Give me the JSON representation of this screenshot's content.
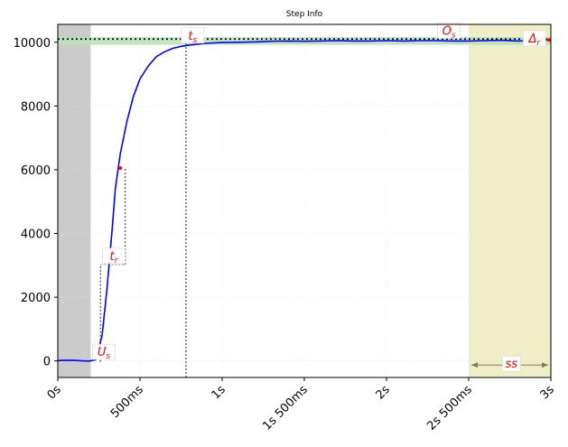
{
  "chart_data": {
    "type": "line",
    "title": "Step Info",
    "xlabel": "",
    "ylabel": "",
    "xlim": [
      0,
      3
    ],
    "ylim": [
      -520,
      10560
    ],
    "grid": true,
    "x_ticks": [
      {
        "value": 0,
        "label": "0s"
      },
      {
        "value": 0.5,
        "label": "500ms"
      },
      {
        "value": 1,
        "label": "1s"
      },
      {
        "value": 1.5,
        "label": "1s 500ms"
      },
      {
        "value": 2,
        "label": "2s"
      },
      {
        "value": 2.5,
        "label": "2s 500ms"
      },
      {
        "value": 3,
        "label": "3s"
      }
    ],
    "y_ticks": [
      {
        "value": 0,
        "label": "0"
      },
      {
        "value": 2000,
        "label": "2000"
      },
      {
        "value": 4000,
        "label": "4000"
      },
      {
        "value": 6000,
        "label": "6000"
      },
      {
        "value": 8000,
        "label": "8000"
      },
      {
        "value": 10000,
        "label": "10000"
      }
    ],
    "series": [
      {
        "color": "#0000ff",
        "points": [
          [
            0.0,
            10
          ],
          [
            0.05,
            20
          ],
          [
            0.1,
            15
          ],
          [
            0.15,
            0
          ],
          [
            0.19,
            -5
          ],
          [
            0.23,
            30
          ],
          [
            0.27,
            800
          ],
          [
            0.3,
            2300
          ],
          [
            0.33,
            4100
          ],
          [
            0.35,
            5400
          ],
          [
            0.38,
            6500
          ],
          [
            0.42,
            7500
          ],
          [
            0.46,
            8300
          ],
          [
            0.5,
            8850
          ],
          [
            0.55,
            9250
          ],
          [
            0.6,
            9550
          ],
          [
            0.65,
            9700
          ],
          [
            0.7,
            9810
          ],
          [
            0.75,
            9870
          ],
          [
            0.8,
            9910
          ],
          [
            0.85,
            9940
          ],
          [
            0.9,
            9965
          ],
          [
            0.95,
            9980
          ],
          [
            1.0,
            9990
          ],
          [
            1.1,
            10000
          ],
          [
            1.2,
            10010
          ],
          [
            1.3,
            10030
          ],
          [
            1.4,
            10040
          ],
          [
            1.5,
            10030
          ],
          [
            1.6,
            10040
          ],
          [
            1.7,
            10050
          ],
          [
            1.8,
            10040
          ],
          [
            1.9,
            10040
          ],
          [
            2.0,
            10050
          ],
          [
            2.1,
            10040
          ],
          [
            2.2,
            10050
          ],
          [
            2.3,
            10050
          ],
          [
            2.4,
            10040
          ],
          [
            2.5,
            10040
          ],
          [
            2.6,
            10050
          ],
          [
            2.7,
            10060
          ],
          [
            2.8,
            10040
          ],
          [
            2.9,
            10060
          ],
          [
            3.0,
            10070
          ]
        ]
      }
    ],
    "reference_line": {
      "y": 10100,
      "style": "dotted",
      "color": "#000000"
    },
    "bands": [
      {
        "name": "undershoot-region",
        "x0": 0,
        "x1": 0.2,
        "color": "#c8c8c8"
      },
      {
        "name": "steady-state-region",
        "x0": 2.5,
        "x1": 3.0,
        "color": "#eeeec4"
      },
      {
        "name": "settling-band",
        "y0": 9920,
        "y1": 10160,
        "color": "#b7e3b7"
      }
    ],
    "markers": [
      {
        "x": 0.38,
        "y": 6050,
        "color": "#ff0000"
      },
      {
        "x": 2.85,
        "y": 10050,
        "color": "#ff0000"
      },
      {
        "x": 2.99,
        "y": 10070,
        "color": "#ff0000"
      }
    ],
    "guides": [
      {
        "type": "vline",
        "x": 0.78,
        "y0": -520,
        "y1": 9960,
        "style": "dotted"
      },
      {
        "type": "vline",
        "x": 0.26,
        "y0": -30,
        "y1": 3020,
        "style": "dotted"
      },
      {
        "type": "vline",
        "x": 0.41,
        "y0": 3020,
        "y1": 6050,
        "style": "dotted"
      }
    ],
    "annotations": [
      {
        "text": "U",
        "sub": "s",
        "x": 0.28,
        "y": 240
      },
      {
        "text": "t",
        "sub": "r",
        "x": 0.34,
        "y": 3250
      },
      {
        "text": "t",
        "sub": "s",
        "x": 0.82,
        "y": 10170
      },
      {
        "text": "O",
        "sub": "s",
        "x": 2.38,
        "y": 10320
      },
      {
        "text": "Δ",
        "sub": "r",
        "x": 2.9,
        "y": 10080
      },
      {
        "text": "ss",
        "sub": "",
        "x": 2.76,
        "y": -130
      }
    ],
    "ss_arrow": {
      "x0": 2.5,
      "x1": 3.0,
      "y": -130
    }
  }
}
